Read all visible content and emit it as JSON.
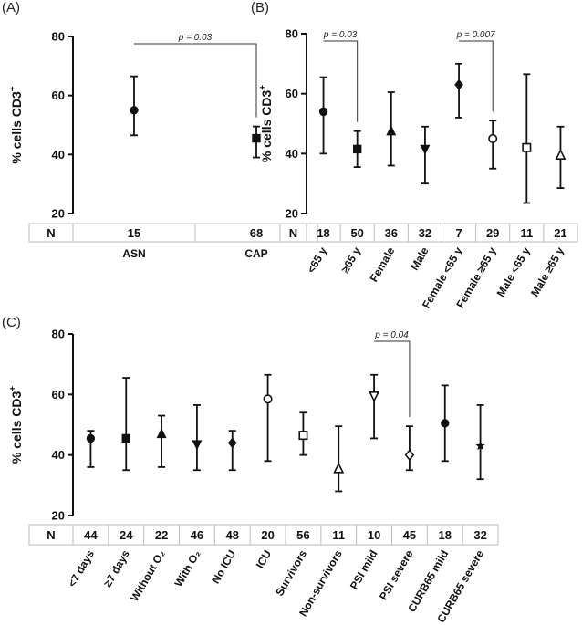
{
  "chart_data": [
    {
      "type": "errorbar",
      "panel": "(A)",
      "ylabel": "% cells CD3",
      "ylabel_sup": "+",
      "ylim": [
        20,
        80
      ],
      "yticks": [
        20,
        40,
        60,
        80
      ],
      "n_label": "N",
      "categories": [
        "ASN",
        "CAP"
      ],
      "n": [
        "15",
        "68"
      ],
      "mean": [
        55,
        45.5
      ],
      "lower": [
        46.5,
        39
      ],
      "upper": [
        66.5,
        49.5
      ],
      "markers": [
        "circle",
        "square"
      ],
      "comparisons": [
        {
          "from": 0,
          "to": 1,
          "label": "p = 0.03"
        }
      ]
    },
    {
      "type": "errorbar",
      "panel": "(B)",
      "ylabel": "% cells CD3",
      "ylabel_sup": "+",
      "ylim": [
        20,
        80
      ],
      "yticks": [
        20,
        40,
        60,
        80
      ],
      "n_label": "N",
      "categories": [
        "<65 y",
        "≥65 y",
        "Female",
        "Male",
        "Female <65 y",
        "Female ≥65 y",
        "Male <65 y",
        "Male ≥65 y"
      ],
      "n": [
        "18",
        "50",
        "36",
        "32",
        "7",
        "29",
        "11",
        "21"
      ],
      "mean": [
        54,
        41.5,
        47.5,
        41.5,
        63,
        45,
        42,
        39.5
      ],
      "lower": [
        40,
        35.5,
        36,
        30,
        52,
        35,
        23.5,
        28.5
      ],
      "upper": [
        65.5,
        47.5,
        60.5,
        49,
        70,
        51,
        66.5,
        49
      ],
      "markers": [
        "circle",
        "square",
        "triangle",
        "triangle-down",
        "diamond",
        "circle-open",
        "square-open",
        "triangle-open"
      ],
      "comparisons": [
        {
          "from": 0,
          "to": 1,
          "label": "p = 0.03"
        },
        {
          "from": 4,
          "to": 5,
          "label": "p = 0.007"
        }
      ]
    },
    {
      "type": "errorbar",
      "panel": "(C)",
      "ylabel": "% cells CD3",
      "ylabel_sup": "+",
      "ylim": [
        20,
        80
      ],
      "yticks": [
        20,
        40,
        60,
        80
      ],
      "n_label": "N",
      "categories": [
        "<7 days",
        "≥7 days",
        "Without O₂",
        "With O₂",
        "No ICU",
        "ICU",
        "Survivors",
        "Non-survivors",
        "PSI mild",
        "PSI severe",
        "CURB65 mild",
        "CURB65 severe"
      ],
      "n": [
        "44",
        "24",
        "22",
        "46",
        "48",
        "20",
        "56",
        "11",
        "10",
        "45",
        "18",
        "32"
      ],
      "mean": [
        45.5,
        45.5,
        47,
        43.5,
        44,
        58.5,
        46.5,
        35.5,
        59.5,
        40,
        50.5,
        43
      ],
      "lower": [
        36,
        35,
        36,
        35,
        35,
        38,
        40,
        28,
        45.5,
        35,
        38,
        32
      ],
      "upper": [
        48,
        65.5,
        53,
        56.5,
        48,
        66.5,
        54,
        49.5,
        66.5,
        49.5,
        63,
        56.5
      ],
      "markers": [
        "circle",
        "square",
        "triangle",
        "triangle-down",
        "diamond",
        "circle-open",
        "square-open",
        "triangle-open",
        "triangle-down-open",
        "diamond-open",
        "circle",
        "star"
      ],
      "comparisons": [
        {
          "from": 8,
          "to": 9,
          "label": "p = 0.04"
        }
      ]
    }
  ]
}
